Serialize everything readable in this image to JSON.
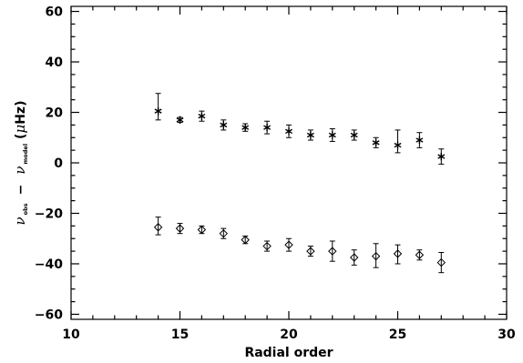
{
  "chart_data": {
    "type": "scatter",
    "title": "",
    "xlabel": "Radial order",
    "ylabel": {
      "parts": [
        "ν",
        "obs",
        "−",
        "ν",
        "model",
        "(",
        "μ",
        "Hz)"
      ]
    },
    "xlim": [
      10,
      30
    ],
    "ylim": [
      -62,
      62
    ],
    "xticks": [
      10,
      15,
      20,
      25,
      30
    ],
    "yticks": [
      -60,
      -40,
      -20,
      0,
      20,
      40,
      60
    ],
    "xtick_labels": [
      "10",
      "15",
      "20",
      "25",
      "30"
    ],
    "ytick_labels": [
      "−60",
      "−40",
      "−20",
      "0",
      "20",
      "40",
      "60"
    ],
    "grid": false,
    "series": [
      {
        "marker": "asterisk",
        "x": [
          14,
          15,
          16,
          17,
          18,
          19,
          20,
          21,
          22,
          23,
          24,
          25,
          26,
          27
        ],
        "y": [
          20.5,
          17,
          18.5,
          15,
          14,
          14,
          12.5,
          11,
          11,
          11,
          8,
          7,
          9,
          2.5
        ],
        "err_low": [
          3.5,
          1,
          2,
          2,
          1.5,
          2.5,
          2.5,
          2,
          2.5,
          2,
          2,
          3,
          3,
          3
        ],
        "err_high": [
          7,
          1,
          2,
          2,
          1.5,
          2.5,
          2.5,
          2,
          2.5,
          2,
          2,
          6,
          3,
          3
        ]
      },
      {
        "marker": "diamond",
        "x": [
          14,
          15,
          16,
          17,
          18,
          19,
          20,
          21,
          22,
          23,
          24,
          25,
          26,
          27
        ],
        "y": [
          -25.5,
          -26,
          -26.5,
          -28,
          -30.5,
          -33,
          -32.5,
          -35,
          -35,
          -37.5,
          -37,
          -36,
          -36.5,
          -39.5
        ],
        "err_low": [
          3,
          2,
          1.5,
          2,
          1.5,
          2,
          2.5,
          2,
          4,
          3,
          4.5,
          4,
          2,
          4
        ],
        "err_high": [
          4,
          2,
          1.5,
          2,
          1.5,
          2,
          2.5,
          2,
          4,
          3,
          5,
          3.5,
          2,
          4
        ]
      }
    ]
  }
}
